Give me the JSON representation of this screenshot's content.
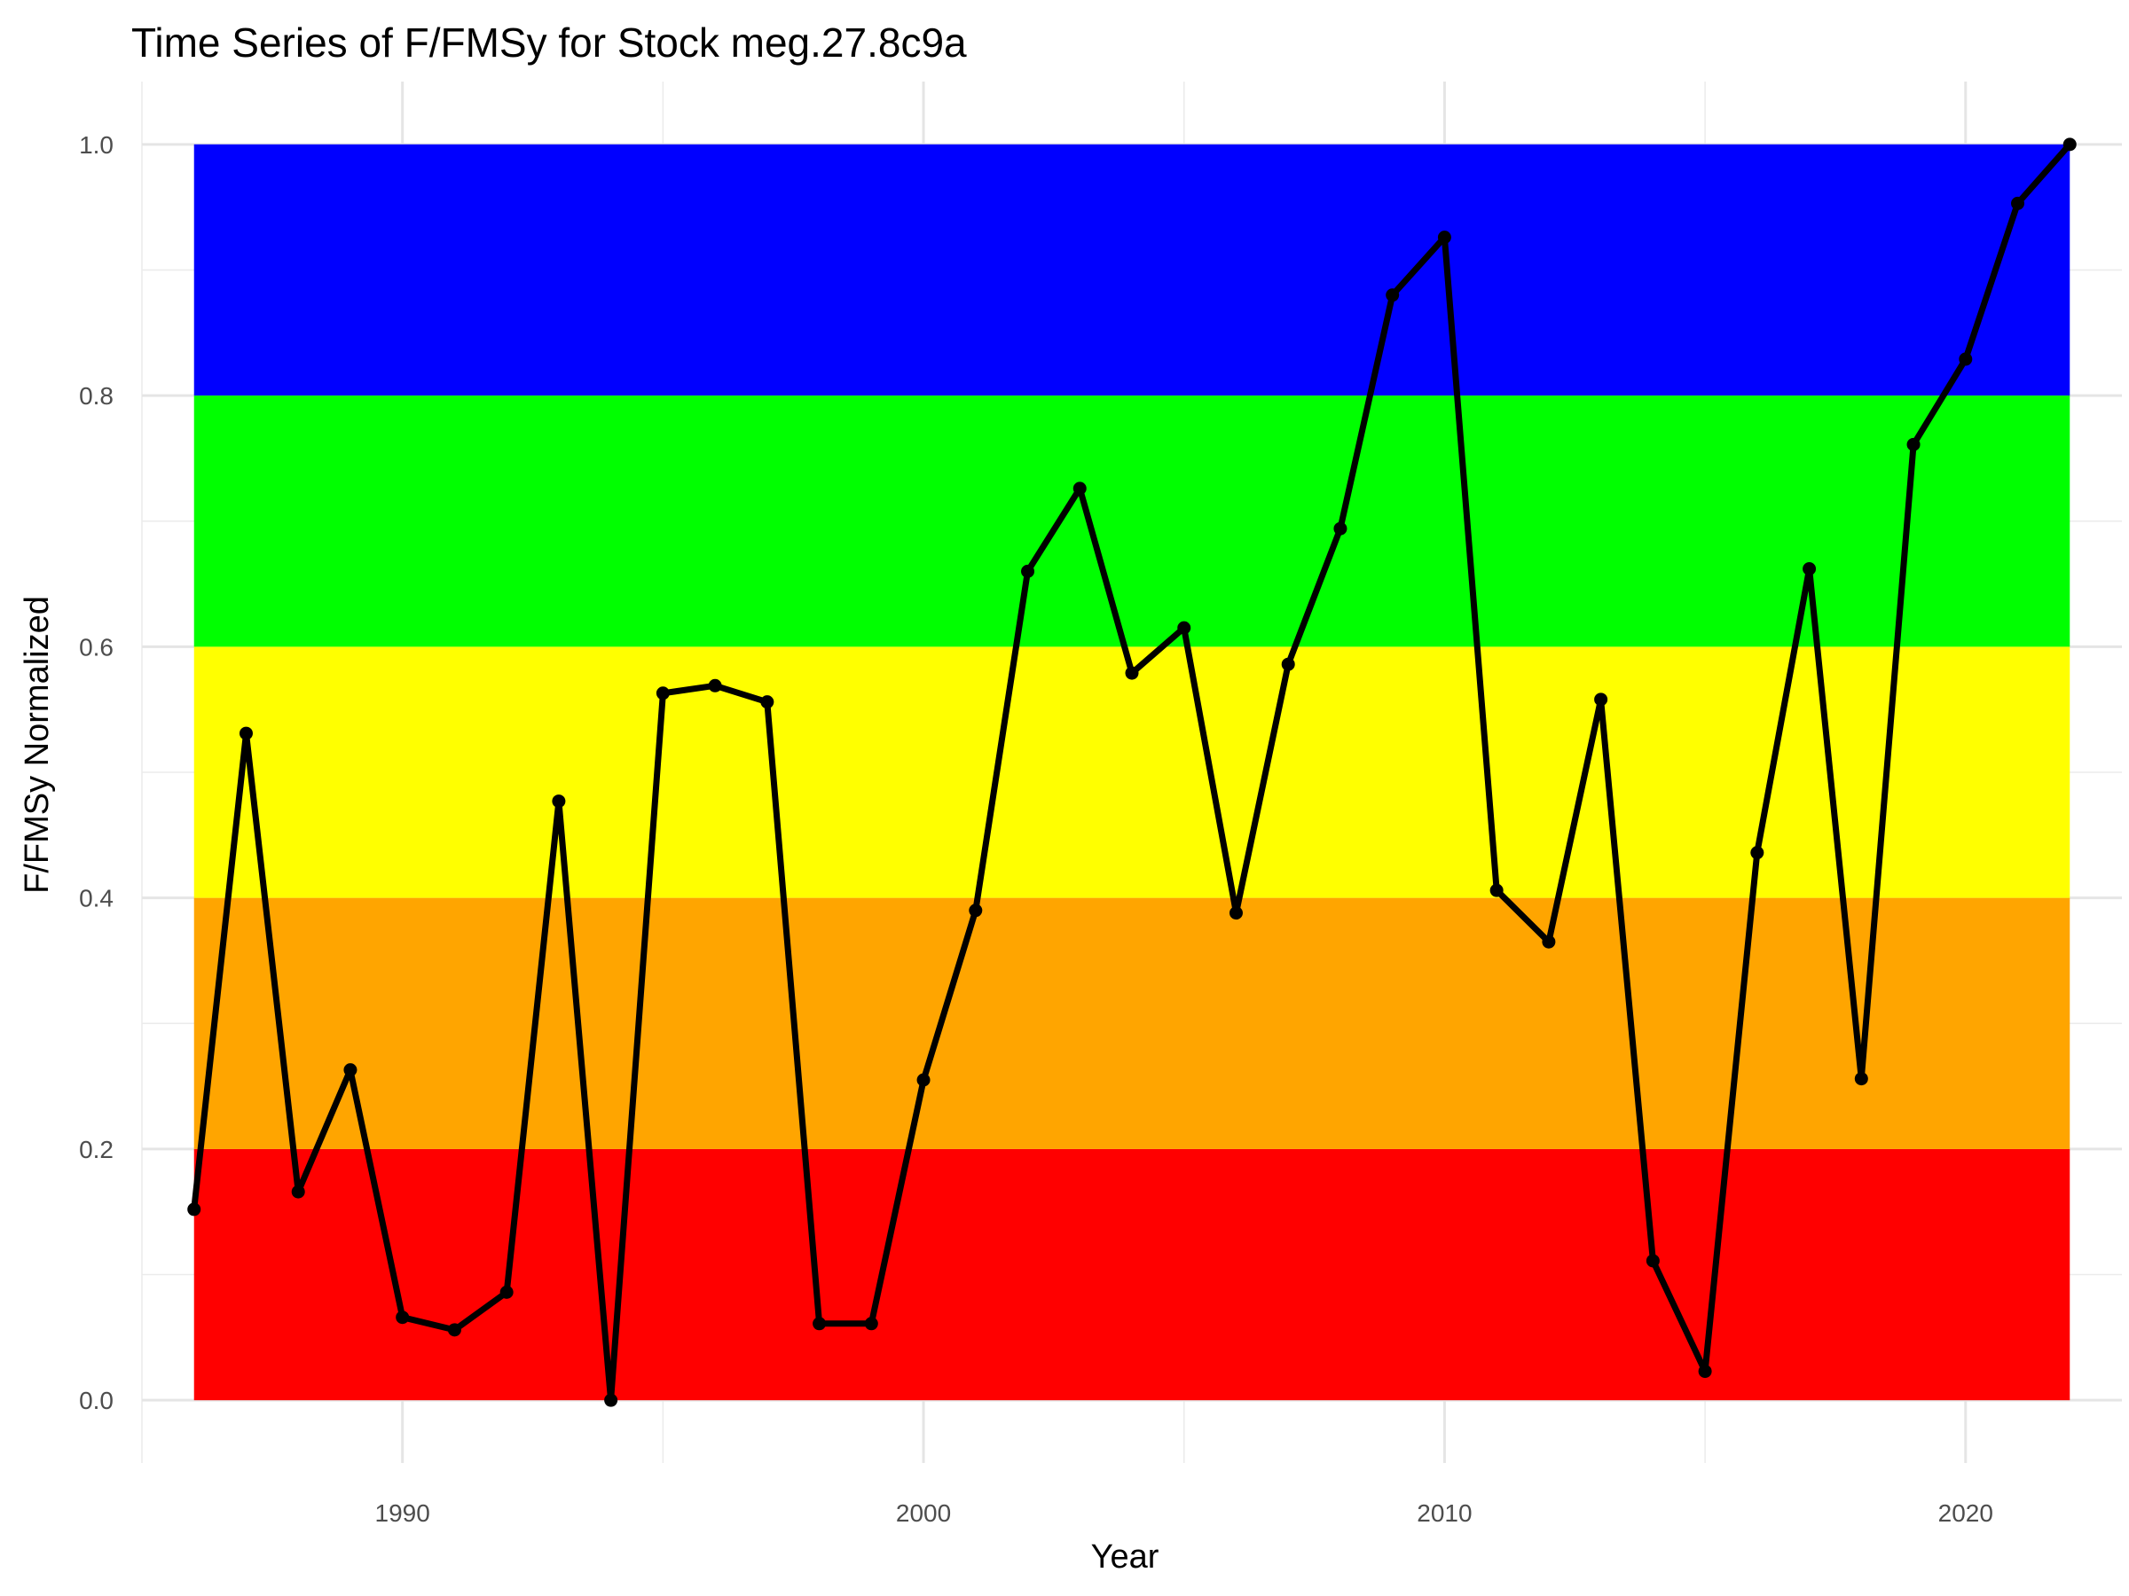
{
  "chart_data": {
    "type": "line",
    "title": "Time Series of F/FMSy for Stock meg.27.8c9a",
    "xlabel": "Year",
    "ylabel": "F/FMSy Normalized",
    "xlim": [
      1985,
      2023
    ],
    "ylim": [
      -0.05,
      1.05
    ],
    "grid": true,
    "x_ticks": [
      "1990",
      "2000",
      "2010",
      "2020"
    ],
    "y_ticks": [
      "0.0",
      "0.2",
      "0.4",
      "0.6",
      "0.8",
      "1.0"
    ],
    "bands": [
      {
        "from": 0.0,
        "to": 0.2,
        "color": "#ff0000"
      },
      {
        "from": 0.2,
        "to": 0.4,
        "color": "#ffa500"
      },
      {
        "from": 0.4,
        "to": 0.6,
        "color": "#ffff00"
      },
      {
        "from": 0.6,
        "to": 0.8,
        "color": "#00ff00"
      },
      {
        "from": 0.8,
        "to": 1.0,
        "color": "#0000ff"
      }
    ],
    "band_x_range": [
      1986,
      2022
    ],
    "line_color": "#000000",
    "series": [
      {
        "x": [
          1986,
          1987,
          1988,
          1989,
          1990,
          1991,
          1992,
          1993,
          1994,
          1995,
          1996,
          1997,
          1998,
          1999,
          2000,
          2001,
          2002,
          2003,
          2004,
          2005,
          2006,
          2007,
          2008,
          2009,
          2010,
          2011,
          2012,
          2013,
          2014,
          2015,
          2016,
          2017,
          2018,
          2019,
          2020,
          2021,
          2022
        ],
        "y": [
          0.152,
          0.531,
          0.166,
          0.263,
          0.066,
          0.056,
          0.086,
          0.477,
          0.0,
          0.563,
          0.569,
          0.556,
          0.061,
          0.061,
          0.255,
          0.39,
          0.66,
          0.726,
          0.579,
          0.615,
          0.388,
          0.586,
          0.694,
          0.88,
          0.926,
          0.406,
          0.365,
          0.558,
          0.111,
          0.023,
          0.436,
          0.662,
          0.256,
          0.761,
          0.829,
          0.953,
          1.0
        ]
      }
    ]
  }
}
